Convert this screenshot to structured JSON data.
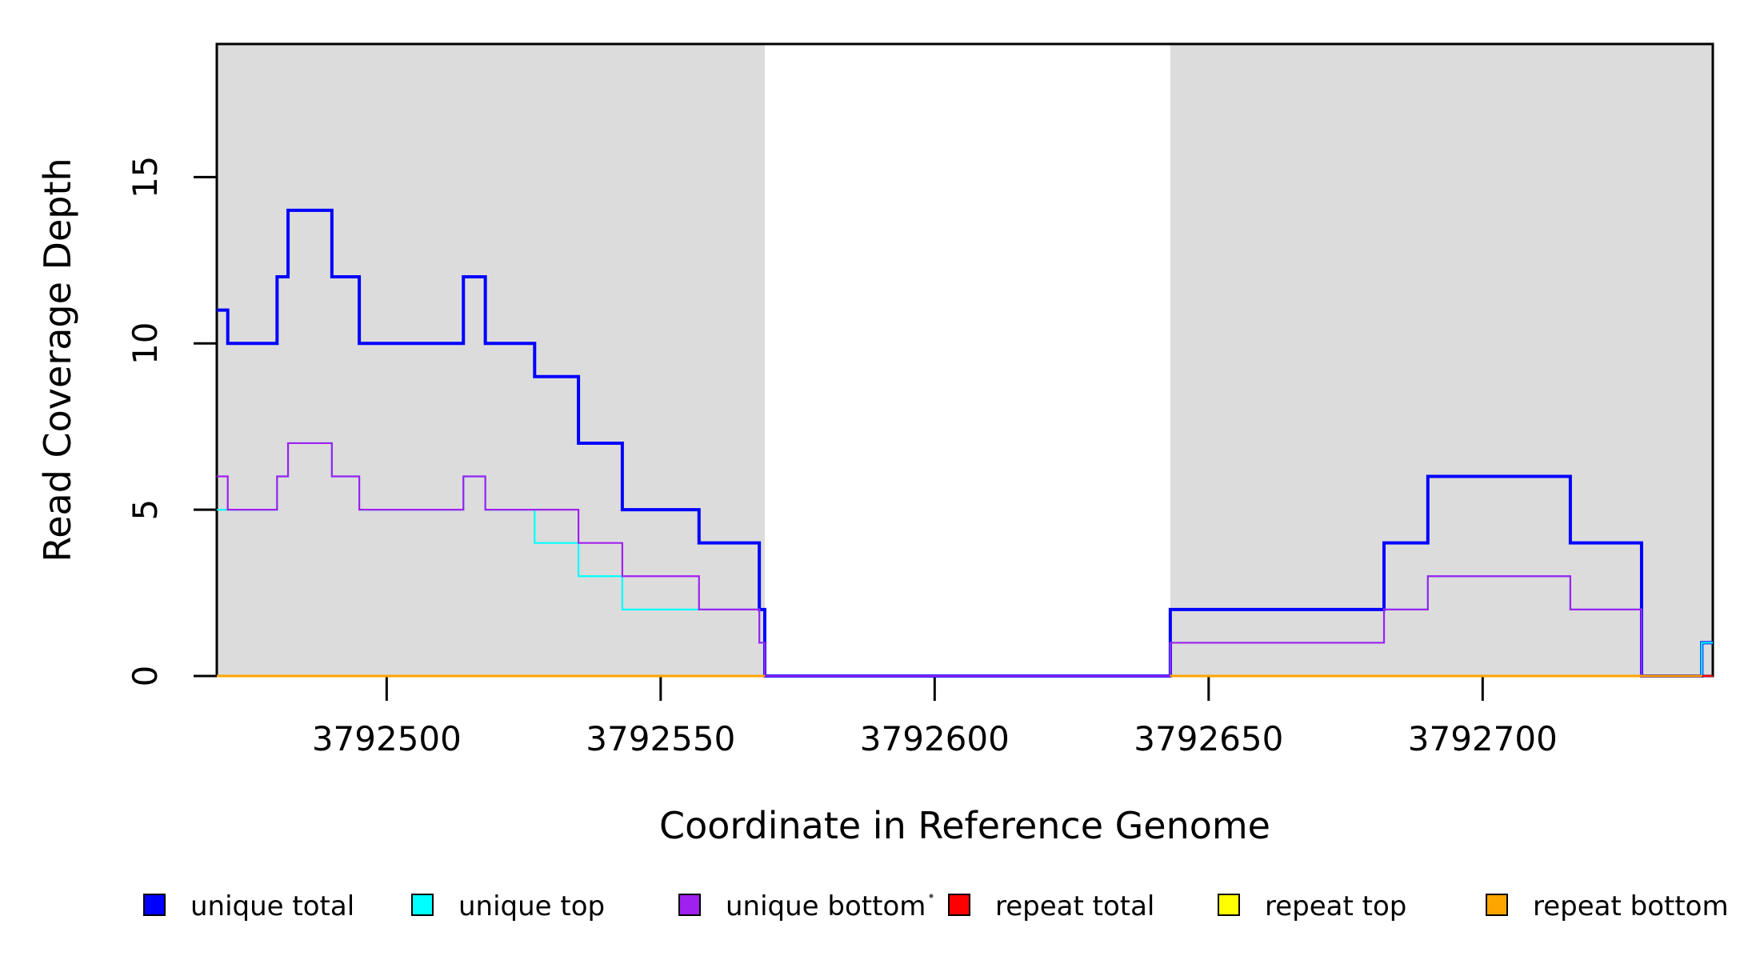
{
  "chart_data": {
    "type": "line",
    "subtype": "step-after-coverage-plot",
    "title": "",
    "xlabel": "Coordinate in Reference Genome",
    "ylabel": "Read Coverage Depth",
    "x_axis": {
      "range": [
        3792469,
        3792742
      ],
      "ticks": [
        3792500,
        3792550,
        3792600,
        3792650,
        3792700
      ]
    },
    "y_axis": {
      "range": [
        0,
        19
      ],
      "ticks": [
        0,
        5,
        10,
        15
      ]
    },
    "grid": "off",
    "legend_position": "bottom",
    "region_color": "#DCDCDC",
    "shaded_regions": [
      [
        3792469,
        3792569
      ],
      [
        3792643,
        3792742
      ]
    ],
    "series": [
      {
        "name": "unique total",
        "color": "#0000FF",
        "line_width": 4,
        "segments": [
          {
            "steps": [
              [
                3792469,
                11
              ],
              [
                3792471,
                10
              ],
              [
                3792480,
                12
              ],
              [
                3792482,
                14
              ],
              [
                3792490,
                12
              ],
              [
                3792495,
                10
              ],
              [
                3792514,
                12
              ],
              [
                3792518,
                10
              ],
              [
                3792527,
                9
              ],
              [
                3792535,
                7
              ],
              [
                3792543,
                5
              ],
              [
                3792557,
                4
              ],
              [
                3792568,
                2
              ],
              [
                3792569,
                0
              ],
              [
                3792643,
                2
              ],
              [
                3792682,
                4
              ],
              [
                3792690,
                6
              ],
              [
                3792716,
                4
              ],
              [
                3792729,
                0
              ],
              [
                3792740,
                1
              ]
            ],
            "end": 3792742
          }
        ]
      },
      {
        "name": "unique top",
        "color": "#00FFFF",
        "line_width": 2.2,
        "segments": [
          {
            "steps": [
              [
                3792469,
                5
              ],
              [
                3792480,
                6
              ],
              [
                3792482,
                7
              ],
              [
                3792490,
                6
              ],
              [
                3792495,
                5
              ],
              [
                3792514,
                6
              ],
              [
                3792518,
                5
              ],
              [
                3792527,
                4
              ],
              [
                3792535,
                3
              ],
              [
                3792543,
                2
              ],
              [
                3792568,
                1
              ],
              [
                3792569,
                0
              ],
              [
                3792643,
                1
              ],
              [
                3792682,
                2
              ],
              [
                3792690,
                3
              ],
              [
                3792716,
                2
              ],
              [
                3792729,
                0
              ],
              [
                3792740,
                1
              ]
            ],
            "end": 3792742
          }
        ]
      },
      {
        "name": "unique bottom",
        "color": "#A020F0",
        "line_width": 2.2,
        "segments": [
          {
            "steps": [
              [
                3792469,
                6
              ],
              [
                3792471,
                5
              ],
              [
                3792480,
                6
              ],
              [
                3792482,
                7
              ],
              [
                3792490,
                6
              ],
              [
                3792495,
                5
              ],
              [
                3792514,
                6
              ],
              [
                3792518,
                5
              ],
              [
                3792535,
                4
              ],
              [
                3792543,
                3
              ],
              [
                3792557,
                2
              ],
              [
                3792568,
                1
              ],
              [
                3792569,
                0
              ],
              [
                3792643,
                1
              ],
              [
                3792682,
                2
              ],
              [
                3792690,
                3
              ],
              [
                3792716,
                2
              ],
              [
                3792729,
                0
              ]
            ],
            "end": 3792742
          }
        ]
      },
      {
        "name": "repeat total",
        "color": "#FF0000",
        "line_width": 2.2,
        "segments": [
          {
            "steps": [
              [
                3792469,
                0
              ]
            ],
            "end": 3792569
          },
          {
            "steps": [
              [
                3792643,
                0
              ]
            ],
            "end": 3792742
          }
        ]
      },
      {
        "name": "repeat top",
        "color": "#FFFF00",
        "line_width": 2.2,
        "segments": [
          {
            "steps": [
              [
                3792469,
                0
              ]
            ],
            "end": 3792569
          },
          {
            "steps": [
              [
                3792643,
                0
              ]
            ],
            "end": 3792740
          }
        ]
      },
      {
        "name": "repeat bottom",
        "color": "#FFA500",
        "line_width": 3,
        "segments": [
          {
            "steps": [
              [
                3792469,
                0
              ]
            ],
            "end": 3792569
          },
          {
            "steps": [
              [
                3792643,
                0
              ]
            ],
            "end": 3792740
          }
        ]
      }
    ]
  }
}
